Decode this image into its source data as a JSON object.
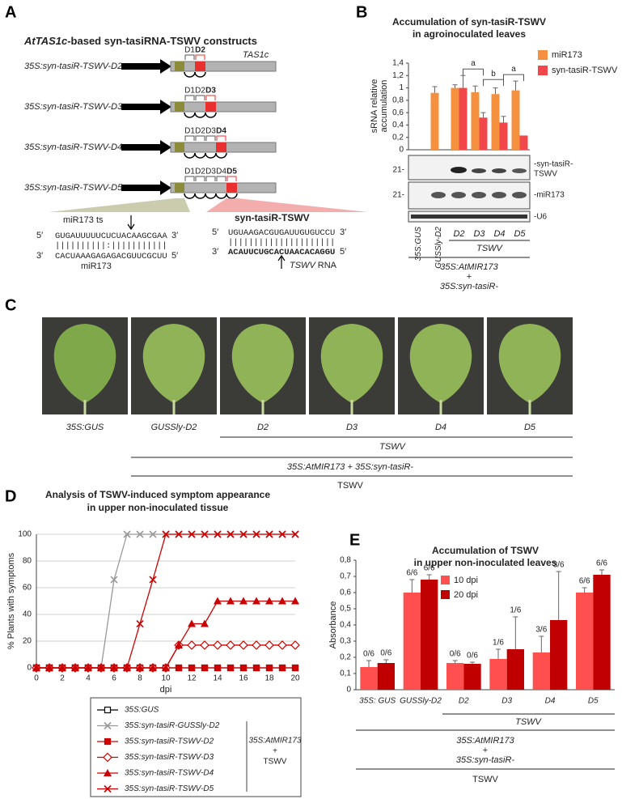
{
  "letters": [
    "A",
    "B",
    "C",
    "D",
    "E"
  ],
  "panel_a": {
    "title_gene": "AtTAS1c",
    "title": "-based syn-tasiRNA-TSWV constructs",
    "constructs": [
      "35S:syn-tasiR-TSWV-D2",
      "35S:syn-tasiR-TSWV-D3",
      "35S:syn-tasiR-TSWV-D4",
      "35S:syn-tasiR-TSWV-D5"
    ],
    "gene": "TAS1c",
    "domains": [
      "D1",
      "D2",
      "D3",
      "D4",
      "D5"
    ],
    "five_prime": "5′",
    "three_prime": "3′",
    "target_label": "miR173 ts",
    "target_seq": "GUGAUUUUUCUCUACAAGCGAA",
    "target_pairing": "||||||||||:|||||||||||",
    "mirna_seq": "CACUAAAGAGAGACGUUCGCUU",
    "mirna_label": "miR173",
    "tasir_label": "syn-tasiR-TSWV",
    "tasir_seq": "UGUAAGACGUGAUUGUGUCCU",
    "tasir_pairing": "|||||||||||||||||||||",
    "rna_seq": "ACAUUCUGCACUAACACAGGU",
    "rna_label_virus": "TSWV",
    "rna_label": "RNA"
  },
  "panel_b": {
    "size_marker": "21-",
    "probe_labels": [
      "-syn-tasiR-",
      "TSWV",
      "-miR173",
      "-U6"
    ],
    "group_labels": [
      "TSWV",
      "35S:AtMIR173",
      "+",
      "35S:syn-tasiR-"
    ]
  },
  "panel_c": {
    "labels": [
      "35S:GUS",
      "GUSSly-D2",
      "D2",
      "D3",
      "D4",
      "D5"
    ],
    "group_labels": [
      "TSWV",
      "35S:AtMIR173 + 35S:syn-tasiR-",
      "TSWV"
    ]
  },
  "panel_d": {
    "legend_group": [
      "35S:AtMIR173",
      "+",
      "TSWV"
    ]
  },
  "panel_e": {
    "group_labels": [
      "TSWV",
      "35S:AtMIR173",
      "+",
      "35S:syn-tasiR-",
      "TSWV"
    ]
  },
  "chart_data": [
    {
      "type": "bar",
      "title": "Accumulation of syn-tasiR-TSWV",
      "subtitle": "in agroinoculated leaves",
      "ylabel": [
        "sRNA relative",
        "accumulation"
      ],
      "categories": [
        "35S:GUS",
        "GUSSly-D2",
        "D2",
        "D3",
        "D4",
        "D5"
      ],
      "series": [
        {
          "name": "miR173",
          "color": "#f5913e",
          "values": [
            0,
            0.92,
            1.0,
            0.93,
            0.9,
            0.96
          ],
          "errors": [
            0,
            0.1,
            0.05,
            0.1,
            0.1,
            0.15
          ]
        },
        {
          "name": "syn-tasiR-TSWV",
          "color": "#f2474a",
          "values": [
            0,
            0,
            1.0,
            0.52,
            0.44,
            0.23
          ],
          "errors": [
            0,
            0,
            0.2,
            0.08,
            0.1,
            0
          ]
        }
      ],
      "ylim": [
        0,
        1.4
      ],
      "yticks": [
        0,
        {
          "value": 0.2,
          "label": "0,2"
        },
        {
          "value": 0.4,
          "label": "0,4"
        },
        {
          "value": 0.6,
          "label": "0,6"
        },
        {
          "value": 0.8,
          "label": "0,8"
        },
        1,
        {
          "value": 1.2,
          "label": "1,2"
        },
        {
          "value": 1.4,
          "label": "1,4"
        }
      ],
      "annotations": [
        "a",
        "b",
        "a"
      ],
      "legend": "outside-right",
      "grid": false
    },
    {
      "type": "line",
      "title": "Analysis of TSWV-induced symptom appearance",
      "subtitle": "in upper non-inoculated tissue",
      "xlabel": "dpi",
      "ylabel": "% Plants with symptoms",
      "x": [
        0,
        1,
        2,
        3,
        4,
        5,
        6,
        7,
        8,
        9,
        10,
        11,
        12,
        13,
        14,
        15,
        16,
        17,
        18,
        19,
        20
      ],
      "series": [
        {
          "name": "35S:GUS",
          "color": "#000000",
          "marker": "square-open",
          "values": [
            0,
            0,
            0,
            0,
            0,
            0,
            0,
            0,
            0,
            0,
            0,
            0,
            0,
            0,
            0,
            0,
            0,
            0,
            0,
            0,
            0
          ]
        },
        {
          "name": "35S:syn-tasiR-GUSSly-D2",
          "color": "#999999",
          "marker": "x",
          "values": [
            0,
            0,
            0,
            0,
            0,
            0,
            66,
            100,
            100,
            100,
            100,
            100,
            100,
            100,
            100,
            100,
            100,
            100,
            100,
            100,
            100
          ]
        },
        {
          "name": "35S:syn-tasiR-TSWV-D2",
          "color": "#cc0000",
          "marker": "square",
          "values": [
            0,
            0,
            0,
            0,
            0,
            0,
            0,
            0,
            0,
            0,
            0,
            0,
            0,
            0,
            0,
            0,
            0,
            0,
            0,
            0,
            0
          ]
        },
        {
          "name": "35S:syn-tasiR-TSWV-D3",
          "color": "#cc0000",
          "marker": "diamond-open",
          "values": [
            0,
            0,
            0,
            0,
            0,
            0,
            0,
            0,
            0,
            0,
            0,
            17,
            17,
            17,
            17,
            17,
            17,
            17,
            17,
            17,
            17
          ]
        },
        {
          "name": "35S:syn-tasiR-TSWV-D4",
          "color": "#cc0000",
          "marker": "triangle",
          "values": [
            0,
            0,
            0,
            0,
            0,
            0,
            0,
            0,
            0,
            0,
            0,
            17,
            33,
            33,
            50,
            50,
            50,
            50,
            50,
            50,
            50
          ]
        },
        {
          "name": "35S:syn-tasiR-TSWV-D5",
          "color": "#cc0000",
          "marker": "x",
          "values": [
            0,
            0,
            0,
            0,
            0,
            0,
            0,
            0,
            33,
            66,
            100,
            100,
            100,
            100,
            100,
            100,
            100,
            100,
            100,
            100,
            100
          ]
        }
      ],
      "xlim": [
        0,
        20
      ],
      "xticks": [
        0,
        2,
        4,
        6,
        8,
        10,
        12,
        14,
        16,
        18,
        20
      ],
      "ylim": [
        0,
        100
      ],
      "yticks": [
        0,
        20,
        40,
        60,
        80,
        100
      ],
      "grid": true,
      "legend": "below"
    },
    {
      "type": "bar",
      "title": "Accumulation of TSWV",
      "subtitle": "in upper non-inoculated leaves",
      "ylabel": "Absorbance",
      "categories": [
        "35S: GUS",
        "GUSSly-D2",
        "D2",
        "D3",
        "D4",
        "D5"
      ],
      "series": [
        {
          "name": "10 dpi",
          "color": "#ff4f4f",
          "values": [
            0.14,
            0.6,
            0.165,
            0.19,
            0.23,
            0.6
          ],
          "errors": [
            0.04,
            0.08,
            0.015,
            0.06,
            0.1,
            0.03
          ],
          "fractions": [
            "0/6",
            "6/6",
            "0/6",
            "1/6",
            "3/6",
            "6/6"
          ]
        },
        {
          "name": "20 dpi",
          "color": "#c00000",
          "values": [
            0.165,
            0.68,
            0.16,
            0.25,
            0.43,
            0.71
          ],
          "errors": [
            0.02,
            0.03,
            0.01,
            0.2,
            0.3,
            0.03
          ],
          "fractions": [
            "0/6",
            "6/6",
            "0/6",
            "1/6",
            "3/6",
            "6/6"
          ]
        }
      ],
      "ylim": [
        0,
        0.8
      ],
      "yticks": [
        0,
        {
          "value": 0.1,
          "label": "0,1"
        },
        {
          "value": 0.2,
          "label": "0,2"
        },
        {
          "value": 0.3,
          "label": "0,3"
        },
        {
          "value": 0.4,
          "label": "0,4"
        },
        {
          "value": 0.5,
          "label": "0,5"
        },
        {
          "value": 0.6,
          "label": "0,6"
        },
        {
          "value": 0.7,
          "label": "0,7"
        },
        {
          "value": 0.8,
          "label": "0,8"
        }
      ],
      "legend": "upper-left",
      "grid": false
    }
  ]
}
